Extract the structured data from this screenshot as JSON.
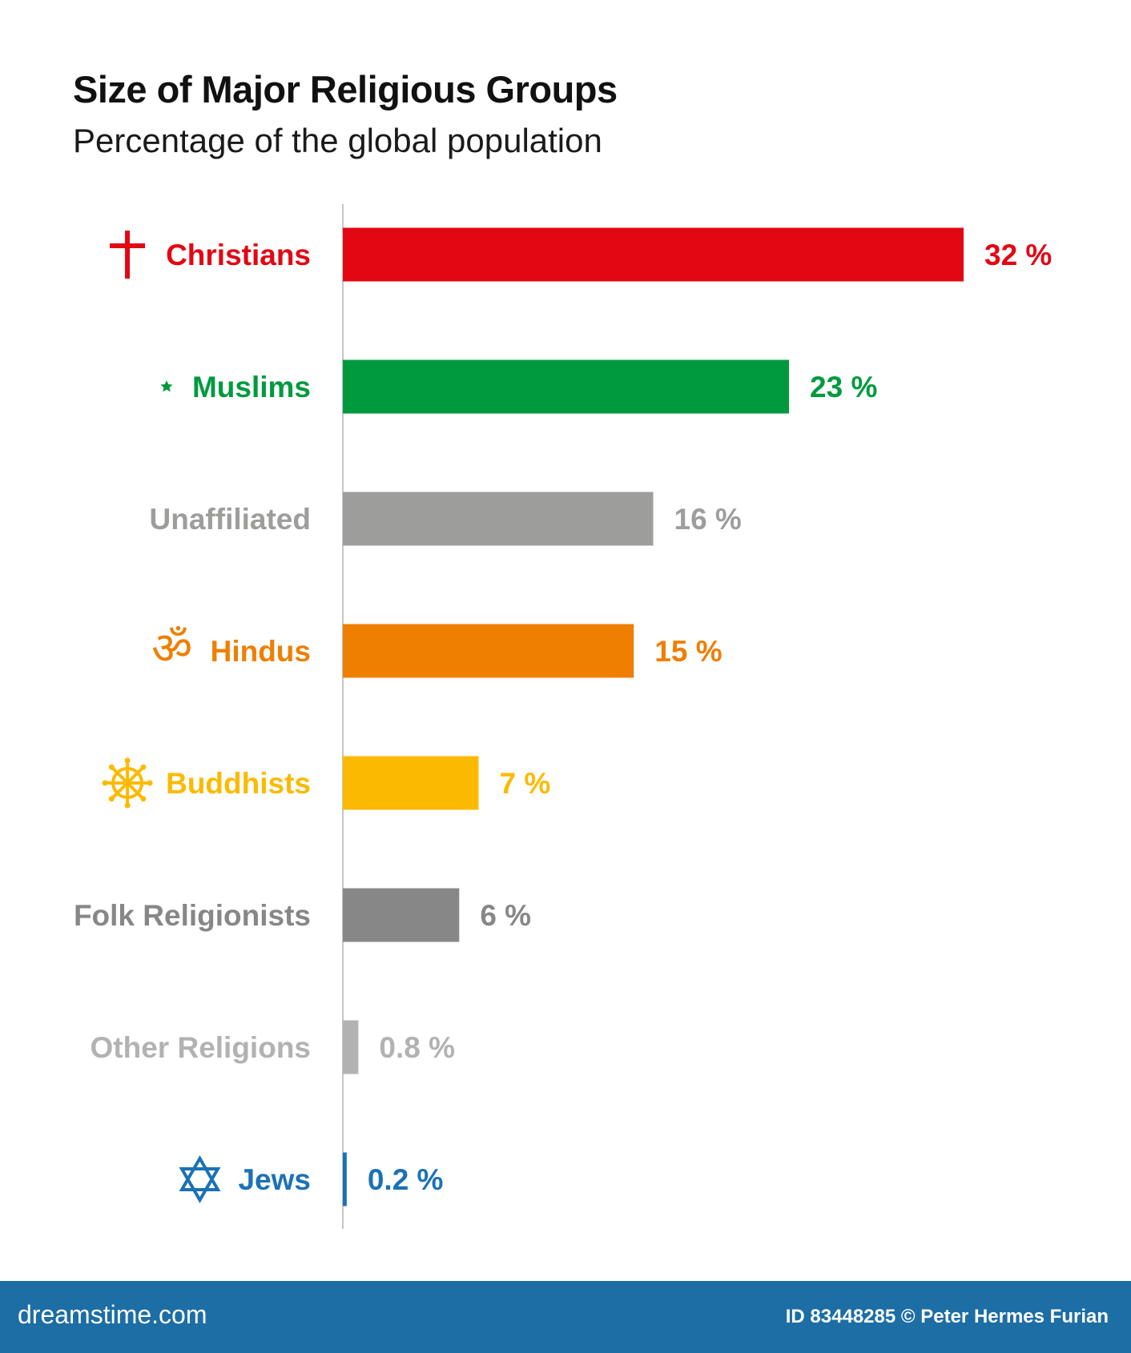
{
  "chart_data": {
    "type": "bar",
    "orientation": "horizontal",
    "title": "Size of Major Religious Groups",
    "subtitle": "Percentage of the global population",
    "categories": [
      "Christians",
      "Muslims",
      "Unaffiliated",
      "Hindus",
      "Buddhists",
      "Folk Religionists",
      "Other Religions",
      "Jews"
    ],
    "values": [
      32,
      23,
      16,
      15,
      7,
      6,
      0.8,
      0.2
    ],
    "value_labels": [
      "32 %",
      "23 %",
      "16 %",
      "15 %",
      "7 %",
      "6 %",
      "0.8 %",
      "0.2 %"
    ],
    "colors": [
      "#e30613",
      "#009a3e",
      "#9d9d9c",
      "#ee7f00",
      "#fbba00",
      "#878787",
      "#b2b2b2",
      "#1c71b5"
    ],
    "icons": [
      "cross-icon",
      "crescent-star-icon",
      "",
      "om-icon",
      "dharma-wheel-icon",
      "",
      "",
      "star-of-david-icon"
    ],
    "xlim": [
      0,
      32
    ],
    "grid": false,
    "legend": "none"
  },
  "footer": {
    "brand": "dreamstime.com",
    "credit": "ID 83448285 © Peter Hermes Furian"
  }
}
